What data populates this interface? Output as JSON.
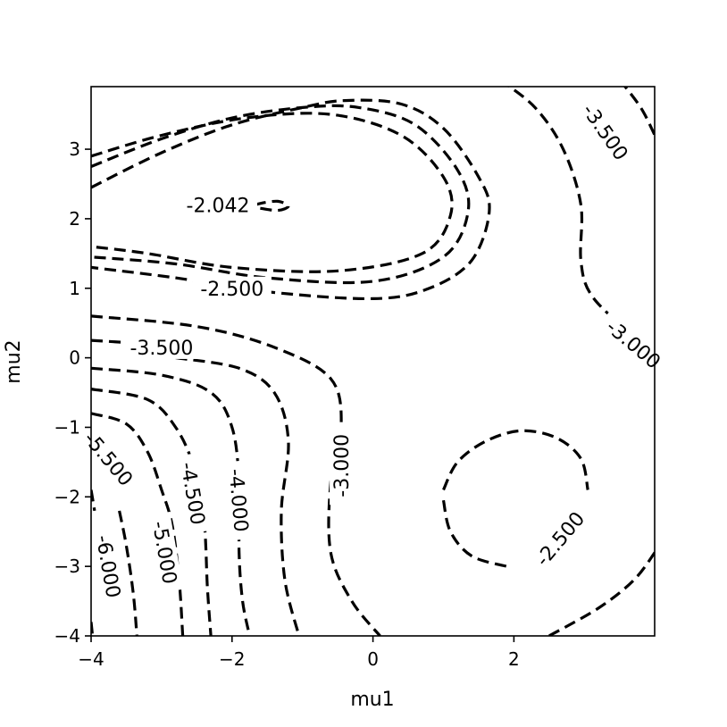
{
  "chart_data": {
    "type": "contour",
    "title": "",
    "xlabel": "mu1",
    "ylabel": "mu2",
    "xlim": [
      -4,
      4
    ],
    "ylim": [
      -4,
      4
    ],
    "xticks": [
      {
        "value": -4,
        "label": "−4"
      },
      {
        "value": -2,
        "label": "−2"
      },
      {
        "value": 0,
        "label": "0"
      },
      {
        "value": 2,
        "label": "2"
      }
    ],
    "yticks": [
      {
        "value": -4,
        "label": "−4"
      },
      {
        "value": -3,
        "label": "−3"
      },
      {
        "value": -2,
        "label": "−2"
      },
      {
        "value": -1,
        "label": "−1"
      },
      {
        "value": 0,
        "label": "0"
      },
      {
        "value": 1,
        "label": "1"
      },
      {
        "value": 2,
        "label": "2"
      },
      {
        "value": 3,
        "label": "3"
      }
    ],
    "line_style": "dashed",
    "line_color": "#000000",
    "contours": [
      {
        "level": "-2.042",
        "points": [
          [
            -1.6,
            2.15
          ],
          [
            -1.35,
            2.12
          ],
          [
            -1.2,
            2.18
          ],
          [
            -1.35,
            2.25
          ],
          [
            -1.6,
            2.22
          ],
          [
            -1.75,
            2.17
          ]
        ]
      },
      {
        "level": "-2.5",
        "points": [
          [
            -4,
            2.9
          ],
          [
            -3,
            3.2
          ],
          [
            -1.8,
            3.45
          ],
          [
            -0.6,
            3.5
          ],
          [
            0.4,
            3.2
          ],
          [
            1.0,
            2.6
          ],
          [
            1.1,
            2.05
          ],
          [
            0.7,
            1.5
          ],
          [
            -0.5,
            1.25
          ],
          [
            -2.0,
            1.3
          ],
          [
            -3.2,
            1.5
          ],
          [
            -4,
            1.6
          ]
        ]
      },
      {
        "level": "-3.0",
        "points": [
          [
            -4,
            2.75
          ],
          [
            -3,
            3.15
          ],
          [
            -2,
            3.45
          ],
          [
            -1,
            3.6
          ],
          [
            -0.2,
            3.6
          ],
          [
            0.6,
            3.35
          ],
          [
            1.2,
            2.7
          ],
          [
            1.35,
            2.1
          ],
          [
            1.0,
            1.45
          ],
          [
            0,
            1.1
          ],
          [
            -1.5,
            1.15
          ],
          [
            -2.8,
            1.35
          ],
          [
            -4,
            1.45
          ]
        ]
      },
      {
        "level": "-3.5",
        "points": [
          [
            -4,
            2.45
          ],
          [
            -3,
            2.95
          ],
          [
            -2,
            3.35
          ],
          [
            -1,
            3.6
          ],
          [
            -0.4,
            3.7
          ],
          [
            0.4,
            3.65
          ],
          [
            1.0,
            3.3
          ],
          [
            1.5,
            2.6
          ],
          [
            1.65,
            2.1
          ],
          [
            1.4,
            1.4
          ],
          [
            0.8,
            1.0
          ],
          [
            0.0,
            0.85
          ],
          [
            -1.5,
            0.95
          ],
          [
            -2.8,
            1.15
          ],
          [
            -4,
            1.3
          ]
        ]
      },
      {
        "level": "-2.5",
        "points": [
          [
            1.0,
            -1.9
          ],
          [
            1.2,
            -1.5
          ],
          [
            1.6,
            -1.2
          ],
          [
            2.1,
            -1.05
          ],
          [
            2.6,
            -1.15
          ],
          [
            2.95,
            -1.45
          ],
          [
            3.05,
            -1.9
          ]
        ]
      },
      {
        "level": "-2.5",
        "points": [
          [
            1.0,
            -2.05
          ],
          [
            1.1,
            -2.5
          ],
          [
            1.4,
            -2.85
          ],
          [
            1.9,
            -3.0
          ]
        ]
      },
      {
        "level": "-3.0",
        "points": [
          [
            1.8,
            4
          ],
          [
            2.3,
            3.6
          ],
          [
            2.7,
            3.0
          ],
          [
            2.95,
            2.2
          ],
          [
            2.95,
            1.4
          ],
          [
            3.1,
            0.9
          ],
          [
            3.6,
            0.4
          ],
          [
            4,
            0.1
          ]
        ]
      },
      {
        "level": "-3.0",
        "points": [
          [
            -4,
            0.6
          ],
          [
            -2.5,
            0.45
          ],
          [
            -1.4,
            0.15
          ],
          [
            -0.6,
            -0.3
          ],
          [
            -0.45,
            -1.0
          ],
          [
            -0.6,
            -1.8
          ],
          [
            -0.6,
            -2.8
          ],
          [
            -0.3,
            -3.5
          ],
          [
            0.1,
            -4
          ]
        ]
      },
      {
        "level": "-3.5",
        "points": [
          [
            3.5,
            4
          ],
          [
            3.8,
            3.6
          ],
          [
            4,
            3.2
          ]
        ]
      },
      {
        "level": "-3.5",
        "points": [
          [
            -2.8,
            0.0
          ],
          [
            -1.9,
            -0.15
          ],
          [
            -1.4,
            -0.5
          ],
          [
            -1.2,
            -1.2
          ],
          [
            -1.3,
            -2.2
          ],
          [
            -1.25,
            -3.2
          ],
          [
            -1.05,
            -4
          ]
        ]
      },
      {
        "level": "-3.5",
        "points": [
          [
            -4,
            0.25
          ],
          [
            -3.5,
            0.22
          ]
        ]
      },
      {
        "level": "-4.0",
        "points": [
          [
            -4,
            -0.15
          ],
          [
            -3,
            -0.25
          ],
          [
            -2.3,
            -0.5
          ],
          [
            -2.0,
            -1.0
          ],
          [
            -1.9,
            -1.8
          ],
          [
            -1.9,
            -2.8
          ],
          [
            -1.85,
            -3.5
          ],
          [
            -1.75,
            -4
          ]
        ]
      },
      {
        "level": "-4.5",
        "points": [
          [
            -4,
            -0.45
          ],
          [
            -3.2,
            -0.6
          ],
          [
            -2.8,
            -1.0
          ],
          [
            -2.55,
            -1.55
          ],
          [
            -2.4,
            -2.3
          ],
          [
            -2.35,
            -3.3
          ],
          [
            -2.3,
            -4
          ]
        ]
      },
      {
        "level": "-5.0",
        "points": [
          [
            -4,
            -0.8
          ],
          [
            -3.5,
            -0.95
          ],
          [
            -3.2,
            -1.35
          ],
          [
            -3.0,
            -1.9
          ],
          [
            -2.85,
            -2.4
          ],
          [
            -2.75,
            -3.2
          ],
          [
            -2.7,
            -4
          ]
        ]
      },
      {
        "level": "-5.5",
        "points": [
          [
            -4,
            -1.1
          ],
          [
            -3.7,
            -1.3
          ]
        ]
      },
      {
        "level": "-5.5",
        "points": [
          [
            -3.6,
            -2.2
          ],
          [
            -3.5,
            -2.7
          ],
          [
            -3.4,
            -3.4
          ],
          [
            -3.35,
            -4
          ]
        ]
      },
      {
        "level": "-6.0",
        "points": [
          [
            -4,
            -1.9
          ],
          [
            -3.95,
            -2.2
          ]
        ]
      },
      {
        "level": "-6.0",
        "points": [
          [
            -4,
            -3.8
          ],
          [
            -3.98,
            -4
          ]
        ]
      },
      {
        "level": "-2.5",
        "points": [
          [
            2.5,
            -4
          ],
          [
            3.2,
            -3.6
          ],
          [
            3.7,
            -3.2
          ],
          [
            4,
            -2.8
          ]
        ]
      }
    ],
    "contour_labels": [
      {
        "text": "-2.042",
        "x": -2.2,
        "y": 2.2,
        "rotation": 0
      },
      {
        "text": "-2.500",
        "x": -2.0,
        "y": 1.0,
        "rotation": 0
      },
      {
        "text": "-3.500",
        "x": -3.0,
        "y": 0.15,
        "rotation": 0
      },
      {
        "text": "-3.500",
        "x": 3.3,
        "y": 3.25,
        "rotation": 55
      },
      {
        "text": "-3.000",
        "x": 3.7,
        "y": 0.2,
        "rotation": 40
      },
      {
        "text": "-3.000",
        "x": -0.45,
        "y": -1.55,
        "rotation": -90
      },
      {
        "text": "-2.500",
        "x": 2.65,
        "y": -2.6,
        "rotation": -50
      },
      {
        "text": "-5.500",
        "x": -3.75,
        "y": -1.45,
        "rotation": 50
      },
      {
        "text": "-4.500",
        "x": -2.55,
        "y": -1.95,
        "rotation": 80
      },
      {
        "text": "-4.000",
        "x": -1.9,
        "y": -2.05,
        "rotation": 85
      },
      {
        "text": "-5.000",
        "x": -2.95,
        "y": -2.8,
        "rotation": 80
      },
      {
        "text": "-6.000",
        "x": -3.75,
        "y": -3.0,
        "rotation": 80
      }
    ]
  }
}
